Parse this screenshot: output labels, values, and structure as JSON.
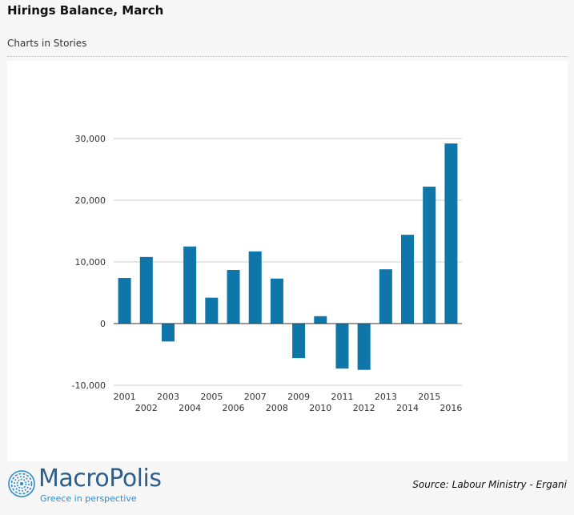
{
  "header": {
    "title": "Hirings Balance, March",
    "subtitle": "Charts in Stories"
  },
  "footer": {
    "logo_text": "MacroPolis",
    "logo_tagline": "Greece in perspective",
    "source": "Source: Labour Ministry - Ergani"
  },
  "colors": {
    "bar": "#0e76a8",
    "grid": "#cccccc",
    "axis": "#333333"
  },
  "chart_data": {
    "type": "bar",
    "title": "Hirings Balance, March",
    "xlabel": "",
    "ylabel": "",
    "categories": [
      "2001",
      "2002",
      "2003",
      "2004",
      "2005",
      "2006",
      "2007",
      "2008",
      "2009",
      "2010",
      "2011",
      "2012",
      "2013",
      "2014",
      "2015",
      "2016"
    ],
    "values": [
      7400,
      10800,
      -2900,
      12500,
      4200,
      8700,
      11700,
      7300,
      -5600,
      1200,
      -7300,
      -7500,
      8800,
      14400,
      22200,
      29200
    ],
    "ylim": [
      -10000,
      30000
    ],
    "yticks": [
      {
        "value": 30000,
        "label": "30,000"
      },
      {
        "value": 20000,
        "label": "20,000"
      },
      {
        "value": 10000,
        "label": "10,000"
      },
      {
        "value": 0,
        "label": "0"
      },
      {
        "value": -10000,
        "label": "-10,000"
      }
    ],
    "grid": true,
    "legend": "none"
  }
}
